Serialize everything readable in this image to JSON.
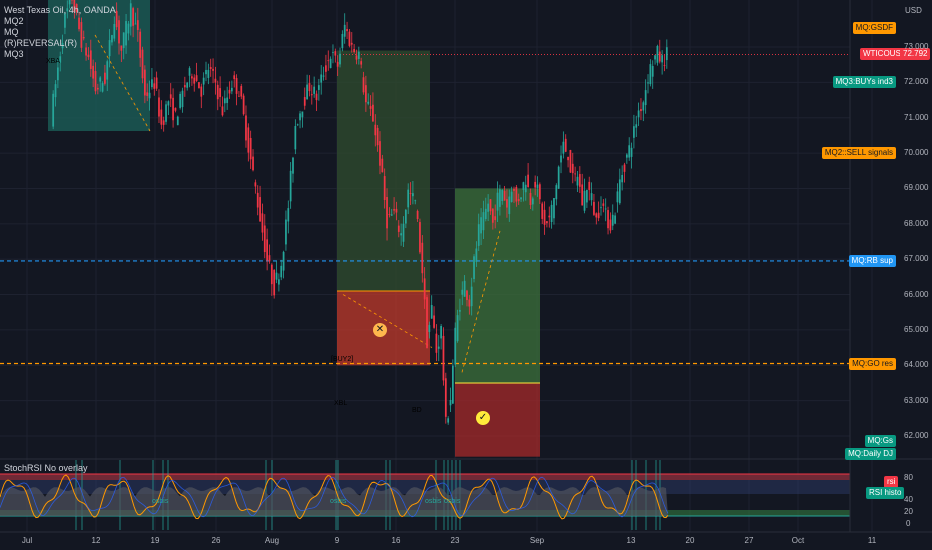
{
  "header": {
    "symbol": "West Texas Oil, 4h, OANDA",
    "indicators": [
      "MQ2",
      "MQ",
      "(R)REVERSAL(R)",
      "MQ3"
    ]
  },
  "currency": "USD",
  "price_axis": {
    "ticks": [
      "73.000",
      "72.000",
      "71.000",
      "70.000",
      "69.000",
      "68.000",
      "67.000",
      "66.000",
      "65.000",
      "64.000",
      "63.000",
      "62.000"
    ]
  },
  "price_tags": [
    {
      "name": "mq-gsdf-tag",
      "text": "MQ:GSDF",
      "price": 73.55,
      "bg": "#ff9800",
      "fg": "#131722"
    },
    {
      "name": "symbol-price-tag",
      "text": "WTICOUSD",
      "price": 72.79,
      "bg": "#f23645",
      "fg": "#ffffff"
    },
    {
      "name": "current-price-tag",
      "text": "72.792",
      "price": 72.79,
      "bg": "#f23645",
      "fg": "#ffffff"
    },
    {
      "name": "mq3-buys-tag",
      "text": "MQ3:BUYs ind3",
      "price": 72.0,
      "bg": "#089981",
      "fg": "#ffffff"
    },
    {
      "name": "mq2-sell-tag",
      "text": "MQ2::SELL signals",
      "price": 70.0,
      "bg": "#ff9800",
      "fg": "#131722"
    },
    {
      "name": "mq-rb-sup-tag",
      "text": "MQ:RB sup",
      "price": 66.95,
      "bg": "#2196f3",
      "fg": "#ffffff"
    },
    {
      "name": "mq-go-res-tag",
      "text": "MQ:GO res",
      "price": 64.05,
      "bg": "#ff9800",
      "fg": "#131722"
    },
    {
      "name": "mq-gs-tag",
      "text": "MQ:Gs",
      "price": 61.85,
      "bg": "#089981",
      "fg": "#ffffff"
    },
    {
      "name": "mq-daily-dj-tag",
      "text": "MQ:Daily DJ",
      "price": 61.5,
      "bg": "#089981",
      "fg": "#ffffff"
    }
  ],
  "date_axis": {
    "ticks": [
      "Jul",
      "12",
      "19",
      "26",
      "Aug",
      "9",
      "16",
      "23",
      "Sep",
      "13",
      "20",
      "27",
      "Oct",
      "11"
    ]
  },
  "annotations": [
    {
      "name": "xba-label",
      "text": "XBA",
      "color": "#f23645"
    },
    {
      "name": "xbl-label",
      "text": "XBL",
      "color": "#26a69a"
    },
    {
      "name": "bd-label",
      "text": "BD",
      "color": "#26a69a"
    },
    {
      "name": "buy2-label",
      "text": "[BUY2]",
      "color": "#26a69a"
    }
  ],
  "rsi_panel": {
    "title": "StochRSI No overlay",
    "ticks": [
      "80",
      "40",
      "20",
      "0"
    ],
    "tags": [
      {
        "name": "rsi-tag",
        "text": "rsi",
        "bg": "#f23645"
      },
      {
        "name": "rsi-histo-tag",
        "text": "RSI histo",
        "bg": "#089981"
      }
    ],
    "labels": [
      "osbis",
      "osbis",
      "osbis",
      "osbis"
    ]
  },
  "colors": {
    "bull": "#26a69a",
    "bear": "#f23645",
    "support": "#2196f3",
    "resistance": "#ff9800"
  },
  "chart_data": {
    "type": "candlestick",
    "instrument": "West Texas Oil",
    "timeframe": "4h",
    "ylim": [
      61.5,
      74.2
    ],
    "x_ticks": [
      "Jul",
      "12",
      "19",
      "26",
      "Aug",
      "9",
      "16",
      "23",
      "Sep",
      "13",
      "20",
      "27",
      "Oct",
      "11"
    ],
    "path": [
      [
        0,
        71.0
      ],
      [
        3,
        72.4
      ],
      [
        6,
        73.8
      ],
      [
        9,
        74.4
      ],
      [
        13,
        73.2
      ],
      [
        16,
        72.7
      ],
      [
        19,
        71.8
      ],
      [
        23,
        72.1
      ],
      [
        27,
        73.9
      ],
      [
        30,
        72.9
      ],
      [
        34,
        74.1
      ],
      [
        37,
        73.3
      ],
      [
        40,
        71.6
      ],
      [
        44,
        72.0
      ],
      [
        47,
        70.8
      ],
      [
        50,
        71.5
      ],
      [
        53,
        71.0
      ],
      [
        57,
        71.9
      ],
      [
        60,
        72.3
      ],
      [
        64,
        71.8
      ],
      [
        67,
        72.4
      ],
      [
        70,
        72.0
      ],
      [
        73,
        71.2
      ],
      [
        77,
        72.0
      ],
      [
        80,
        71.8
      ],
      [
        84,
        70.2
      ],
      [
        88,
        68.6
      ],
      [
        92,
        67.0
      ],
      [
        95,
        66.2
      ],
      [
        98,
        66.9
      ],
      [
        101,
        68.5
      ],
      [
        104,
        70.8
      ],
      [
        107,
        71.4
      ],
      [
        110,
        71.9
      ],
      [
        113,
        71.6
      ],
      [
        116,
        72.3
      ],
      [
        119,
        72.8
      ],
      [
        122,
        72.5
      ],
      [
        125,
        73.6
      ],
      [
        128,
        73.0
      ],
      [
        131,
        72.8
      ],
      [
        134,
        71.4
      ],
      [
        137,
        71.0
      ],
      [
        140,
        69.8
      ],
      [
        143,
        68.1
      ],
      [
        146,
        68.3
      ],
      [
        149,
        67.7
      ],
      [
        152,
        68.9
      ],
      [
        155,
        68.6
      ],
      [
        158,
        66.7
      ],
      [
        160,
        64.7
      ],
      [
        162,
        65.6
      ],
      [
        164,
        64.4
      ],
      [
        166,
        65.0
      ],
      [
        168,
        62.3
      ],
      [
        170,
        63.1
      ],
      [
        172,
        64.9
      ],
      [
        174,
        65.8
      ],
      [
        176,
        66.3
      ],
      [
        178,
        65.8
      ],
      [
        180,
        66.9
      ],
      [
        182,
        67.8
      ],
      [
        184,
        68.1
      ],
      [
        186,
        68.6
      ],
      [
        188,
        68.0
      ],
      [
        190,
        68.7
      ],
      [
        192,
        69.0
      ],
      [
        194,
        68.5
      ],
      [
        196,
        69.1
      ],
      [
        198,
        68.6
      ],
      [
        200,
        68.9
      ],
      [
        202,
        69.3
      ],
      [
        204,
        68.7
      ],
      [
        206,
        69.2
      ],
      [
        208,
        68.6
      ],
      [
        210,
        67.9
      ],
      [
        212,
        68.1
      ],
      [
        214,
        68.7
      ],
      [
        216,
        69.6
      ],
      [
        218,
        70.2
      ],
      [
        220,
        70.0
      ],
      [
        222,
        69.2
      ],
      [
        224,
        69.4
      ],
      [
        226,
        68.6
      ],
      [
        228,
        69.1
      ],
      [
        230,
        68.7
      ],
      [
        232,
        68.1
      ],
      [
        234,
        68.7
      ],
      [
        236,
        68.2
      ],
      [
        238,
        68.0
      ],
      [
        240,
        68.4
      ],
      [
        242,
        69.2
      ],
      [
        244,
        69.7
      ],
      [
        246,
        70.1
      ],
      [
        248,
        70.6
      ],
      [
        250,
        71.2
      ],
      [
        252,
        71.5
      ],
      [
        254,
        72.2
      ],
      [
        256,
        72.6
      ],
      [
        258,
        72.8
      ],
      [
        260,
        72.6
      ],
      [
        262,
        72.79
      ]
    ],
    "series": [
      {
        "name": "RSI"
      },
      {
        "name": "StochRSI"
      }
    ]
  }
}
